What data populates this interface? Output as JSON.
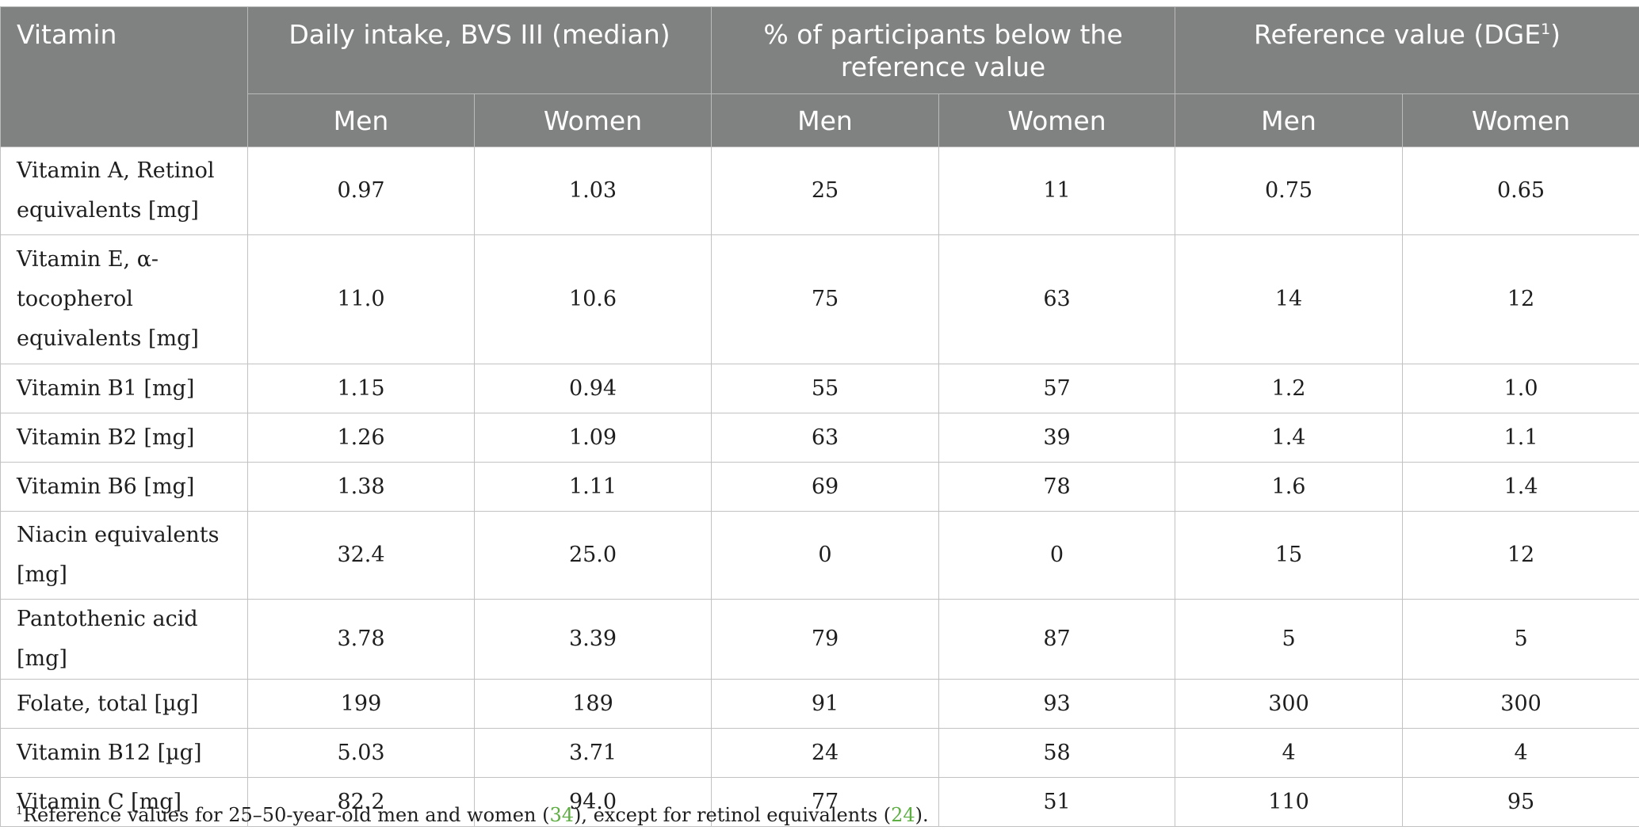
{
  "table": {
    "headers": {
      "vitamin": "Vitamin",
      "daily_intake": "Daily intake, BVS III (median)",
      "pct_below": "% of participants below the reference value",
      "reference": "Reference value (DGE",
      "reference_sup": "1",
      "reference_close": ")",
      "men": "Men",
      "women": "Women"
    },
    "rows": [
      {
        "name": "Vitamin A, Retinol equivalents [mg]",
        "intake_men": "0.97",
        "intake_women": "1.03",
        "below_men": "25",
        "below_women": "11",
        "ref_men": "0.75",
        "ref_women": "0.65"
      },
      {
        "name": "Vitamin E, α-tocopherol equivalents [mg]",
        "intake_men": "11.0",
        "intake_women": "10.6",
        "below_men": "75",
        "below_women": "63",
        "ref_men": "14",
        "ref_women": "12"
      },
      {
        "name": "Vitamin B1 [mg]",
        "intake_men": "1.15",
        "intake_women": "0.94",
        "below_men": "55",
        "below_women": "57",
        "ref_men": "1.2",
        "ref_women": "1.0"
      },
      {
        "name": "Vitamin B2 [mg]",
        "intake_men": "1.26",
        "intake_women": "1.09",
        "below_men": "63",
        "below_women": "39",
        "ref_men": "1.4",
        "ref_women": "1.1"
      },
      {
        "name": "Vitamin B6 [mg]",
        "intake_men": "1.38",
        "intake_women": "1.11",
        "below_men": "69",
        "below_women": "78",
        "ref_men": "1.6",
        "ref_women": "1.4"
      },
      {
        "name": "Niacin equivalents [mg]",
        "intake_men": "32.4",
        "intake_women": "25.0",
        "below_men": "0",
        "below_women": "0",
        "ref_men": "15",
        "ref_women": "12"
      },
      {
        "name": "Pantothenic acid [mg]",
        "intake_men": "3.78",
        "intake_women": "3.39",
        "below_men": "79",
        "below_women": "87",
        "ref_men": "5",
        "ref_women": "5"
      },
      {
        "name": "Folate, total [µg]",
        "intake_men": "199",
        "intake_women": "189",
        "below_men": "91",
        "below_women": "93",
        "ref_men": "300",
        "ref_women": "300"
      },
      {
        "name": "Vitamin B12 [µg]",
        "intake_men": "5.03",
        "intake_women": "3.71",
        "below_men": "24",
        "below_women": "58",
        "ref_men": "4",
        "ref_women": "4"
      },
      {
        "name": "Vitamin C [mg]",
        "intake_men": "82.2",
        "intake_women": "94.0",
        "below_men": "77",
        "below_women": "51",
        "ref_men": "110",
        "ref_women": "95"
      }
    ]
  },
  "footnote": {
    "marker": "1",
    "text_a": "Reference values for 25–50-year-old men and women (",
    "ref_a": "34",
    "text_b": "), except for retinol equivalents (",
    "ref_b": "24",
    "text_c": ")."
  }
}
